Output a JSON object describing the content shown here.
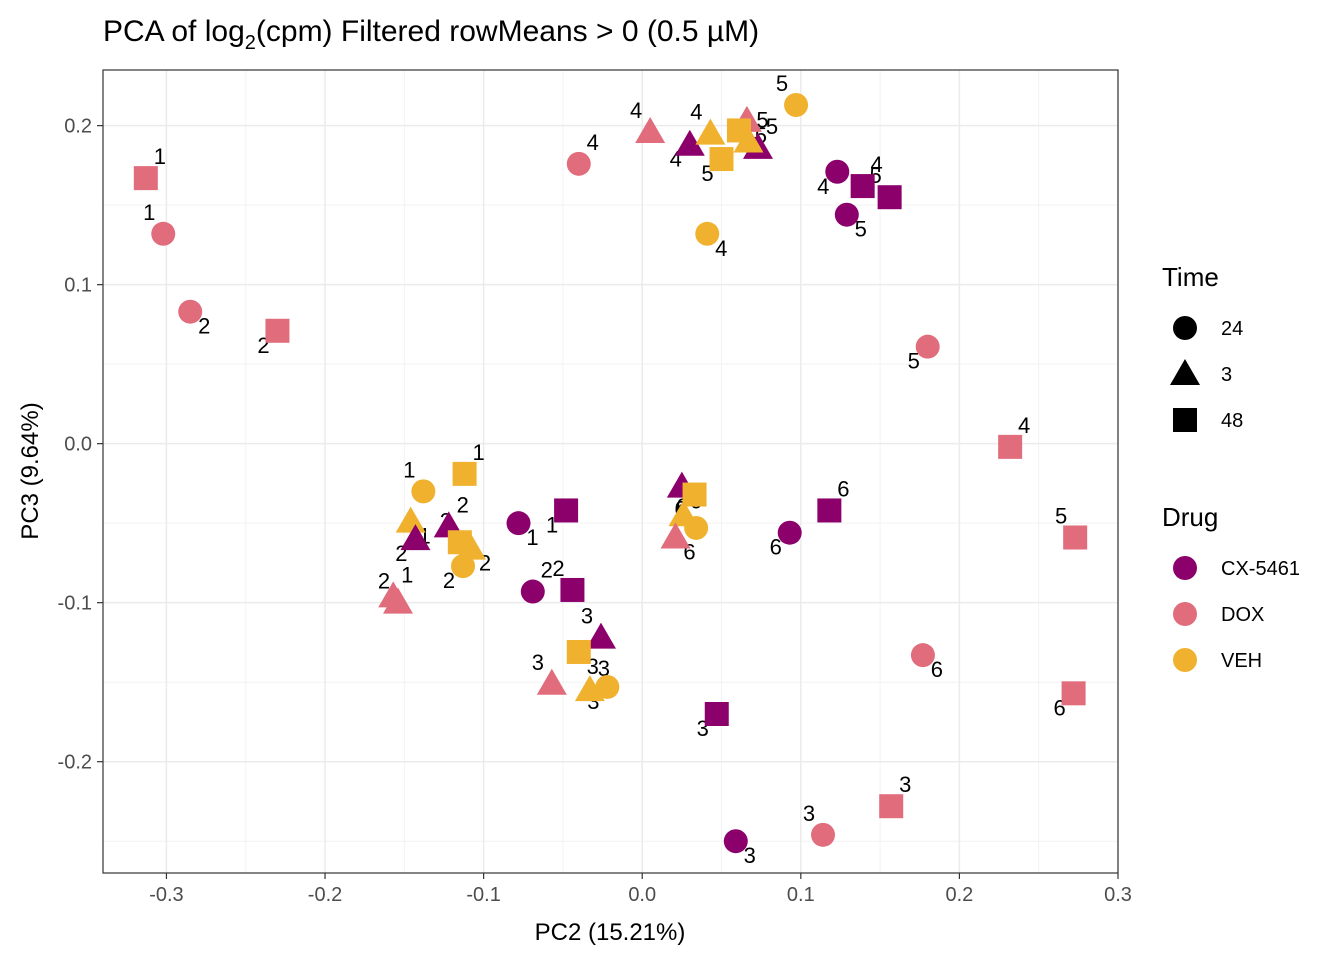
{
  "chart_data": {
    "type": "scatter",
    "title": "PCA of log₂(cpm) Filtered rowMeans > 0 (0.5 µM)",
    "title_parts": {
      "pre": "PCA of log",
      "sub": "2",
      "post": "(cpm) Filtered rowMeans > 0 (0.5 µM)"
    },
    "xlabel": "PC2 (15.21%)",
    "ylabel": "PC3 (9.64%)",
    "xlim": [
      -0.34,
      0.3
    ],
    "ylim": [
      -0.27,
      0.235
    ],
    "x_ticks": [
      -0.3,
      -0.2,
      -0.1,
      0.0,
      0.1,
      0.2,
      0.3
    ],
    "x_tick_labels": [
      "-0.3",
      "-0.2",
      "-0.1",
      "0.0",
      "0.1",
      "0.2",
      "0.3"
    ],
    "y_ticks": [
      -0.2,
      -0.1,
      0.0,
      0.1,
      0.2
    ],
    "y_tick_labels": [
      "-0.2",
      "-0.1",
      "0.0",
      "0.1",
      "0.2"
    ],
    "grid": true,
    "legend_placement": "right",
    "legends": [
      {
        "title": "Time",
        "entries": [
          {
            "label": "24",
            "shape": "circle"
          },
          {
            "label": "3",
            "shape": "triangle"
          },
          {
            "label": "48",
            "shape": "square"
          }
        ]
      },
      {
        "title": "Drug",
        "entries": [
          {
            "label": "CX-5461",
            "color": "#8B006B"
          },
          {
            "label": "DOX",
            "color": "#E06C7C"
          },
          {
            "label": "VEH",
            "color": "#F0B22E"
          }
        ]
      }
    ],
    "colors": {
      "CX-5461": "#8B006B",
      "DOX": "#E06C7C",
      "VEH": "#F0B22E"
    },
    "shapes": {
      "24": "circle",
      "3": "triangle",
      "48": "square"
    },
    "points": [
      {
        "x": -0.313,
        "y": 0.167,
        "drug": "DOX",
        "time": "48",
        "label": "1"
      },
      {
        "x": -0.302,
        "y": 0.132,
        "drug": "DOX",
        "time": "24",
        "label": "1"
      },
      {
        "x": -0.285,
        "y": 0.083,
        "drug": "DOX",
        "time": "24",
        "label": "2"
      },
      {
        "x": -0.23,
        "y": 0.071,
        "drug": "DOX",
        "time": "48",
        "label": "2"
      },
      {
        "x": -0.04,
        "y": 0.176,
        "drug": "DOX",
        "time": "24",
        "label": "4"
      },
      {
        "x": 0.005,
        "y": 0.196,
        "drug": "DOX",
        "time": "3",
        "label": "4"
      },
      {
        "x": 0.066,
        "y": 0.203,
        "drug": "DOX",
        "time": "3",
        "label": "5"
      },
      {
        "x": 0.03,
        "y": 0.188,
        "drug": "CX-5461",
        "time": "3",
        "label": "4"
      },
      {
        "x": 0.073,
        "y": 0.186,
        "drug": "CX-5461",
        "time": "3",
        "label": "5"
      },
      {
        "x": 0.043,
        "y": 0.195,
        "drug": "VEH",
        "time": "3",
        "label": "4"
      },
      {
        "x": 0.061,
        "y": 0.197,
        "drug": "VEH",
        "time": "48",
        "label": "4"
      },
      {
        "x": 0.05,
        "y": 0.179,
        "drug": "VEH",
        "time": "48",
        "label": "5"
      },
      {
        "x": 0.067,
        "y": 0.19,
        "drug": "VEH",
        "time": "3",
        "label": "5"
      },
      {
        "x": 0.097,
        "y": 0.213,
        "drug": "VEH",
        "time": "24",
        "label": "5"
      },
      {
        "x": 0.041,
        "y": 0.132,
        "drug": "VEH",
        "time": "24",
        "label": "4"
      },
      {
        "x": 0.123,
        "y": 0.171,
        "drug": "CX-5461",
        "time": "24",
        "label": "4"
      },
      {
        "x": 0.139,
        "y": 0.162,
        "drug": "CX-5461",
        "time": "48",
        "label": "4"
      },
      {
        "x": 0.156,
        "y": 0.155,
        "drug": "CX-5461",
        "time": "48",
        "label": "5"
      },
      {
        "x": 0.129,
        "y": 0.144,
        "drug": "CX-5461",
        "time": "24",
        "label": "5"
      },
      {
        "x": 0.18,
        "y": 0.061,
        "drug": "DOX",
        "time": "24",
        "label": "5"
      },
      {
        "x": 0.232,
        "y": -0.002,
        "drug": "DOX",
        "time": "48",
        "label": "4"
      },
      {
        "x": 0.273,
        "y": -0.059,
        "drug": "DOX",
        "time": "48",
        "label": "5"
      },
      {
        "x": 0.177,
        "y": -0.133,
        "drug": "DOX",
        "time": "24",
        "label": "6"
      },
      {
        "x": 0.272,
        "y": -0.157,
        "drug": "DOX",
        "time": "48",
        "label": "6"
      },
      {
        "x": 0.157,
        "y": -0.228,
        "drug": "DOX",
        "time": "48",
        "label": "3"
      },
      {
        "x": 0.114,
        "y": -0.246,
        "drug": "DOX",
        "time": "24",
        "label": "3"
      },
      {
        "x": 0.059,
        "y": -0.25,
        "drug": "CX-5461",
        "time": "24",
        "label": "3"
      },
      {
        "x": 0.047,
        "y": -0.17,
        "drug": "CX-5461",
        "time": "48",
        "label": "3"
      },
      {
        "x": -0.112,
        "y": -0.019,
        "drug": "VEH",
        "time": "48",
        "label": "1"
      },
      {
        "x": -0.138,
        "y": -0.03,
        "drug": "VEH",
        "time": "24",
        "label": "1"
      },
      {
        "x": -0.146,
        "y": -0.049,
        "drug": "VEH",
        "time": "3",
        "label": "1"
      },
      {
        "x": -0.143,
        "y": -0.06,
        "drug": "CX-5461",
        "time": "3",
        "label": "2"
      },
      {
        "x": -0.122,
        "y": -0.052,
        "drug": "CX-5461",
        "time": "3",
        "label": "2"
      },
      {
        "x": -0.115,
        "y": -0.062,
        "drug": "VEH",
        "time": "48",
        "label": "2"
      },
      {
        "x": -0.108,
        "y": -0.066,
        "drug": "VEH",
        "time": "3",
        "label": "2"
      },
      {
        "x": -0.113,
        "y": -0.077,
        "drug": "VEH",
        "time": "24",
        "label": "2"
      },
      {
        "x": -0.157,
        "y": -0.096,
        "drug": "DOX",
        "time": "3",
        "label": "1"
      },
      {
        "x": -0.154,
        "y": -0.1,
        "drug": "DOX",
        "time": "3",
        "label": "2"
      },
      {
        "x": -0.078,
        "y": -0.05,
        "drug": "CX-5461",
        "time": "24",
        "label": "1"
      },
      {
        "x": -0.048,
        "y": -0.042,
        "drug": "CX-5461",
        "time": "48",
        "label": "1"
      },
      {
        "x": -0.069,
        "y": -0.093,
        "drug": "CX-5461",
        "time": "24",
        "label": "2"
      },
      {
        "x": -0.044,
        "y": -0.092,
        "drug": "CX-5461",
        "time": "48",
        "label": "2"
      },
      {
        "x": 0.025,
        "y": -0.027,
        "drug": "CX-5461",
        "time": "3",
        "label": "6"
      },
      {
        "x": 0.033,
        "y": -0.032,
        "drug": "VEH",
        "time": "48",
        "label": "6"
      },
      {
        "x": 0.026,
        "y": -0.045,
        "drug": "VEH",
        "time": "3",
        "label": "6"
      },
      {
        "x": 0.034,
        "y": -0.053,
        "drug": "VEH",
        "time": "24",
        "label": "6"
      },
      {
        "x": 0.021,
        "y": -0.059,
        "drug": "DOX",
        "time": "3",
        "label": "6"
      },
      {
        "x": 0.093,
        "y": -0.056,
        "drug": "CX-5461",
        "time": "24",
        "label": "6"
      },
      {
        "x": 0.118,
        "y": -0.042,
        "drug": "CX-5461",
        "time": "48",
        "label": "6"
      },
      {
        "x": -0.026,
        "y": -0.122,
        "drug": "CX-5461",
        "time": "3",
        "label": "3"
      },
      {
        "x": -0.04,
        "y": -0.131,
        "drug": "VEH",
        "time": "48",
        "label": "3"
      },
      {
        "x": -0.022,
        "y": -0.153,
        "drug": "VEH",
        "time": "24",
        "label": "3"
      },
      {
        "x": -0.033,
        "y": -0.155,
        "drug": "VEH",
        "time": "3",
        "label": "3"
      },
      {
        "x": -0.057,
        "y": -0.151,
        "drug": "DOX",
        "time": "3",
        "label": "3"
      }
    ]
  }
}
